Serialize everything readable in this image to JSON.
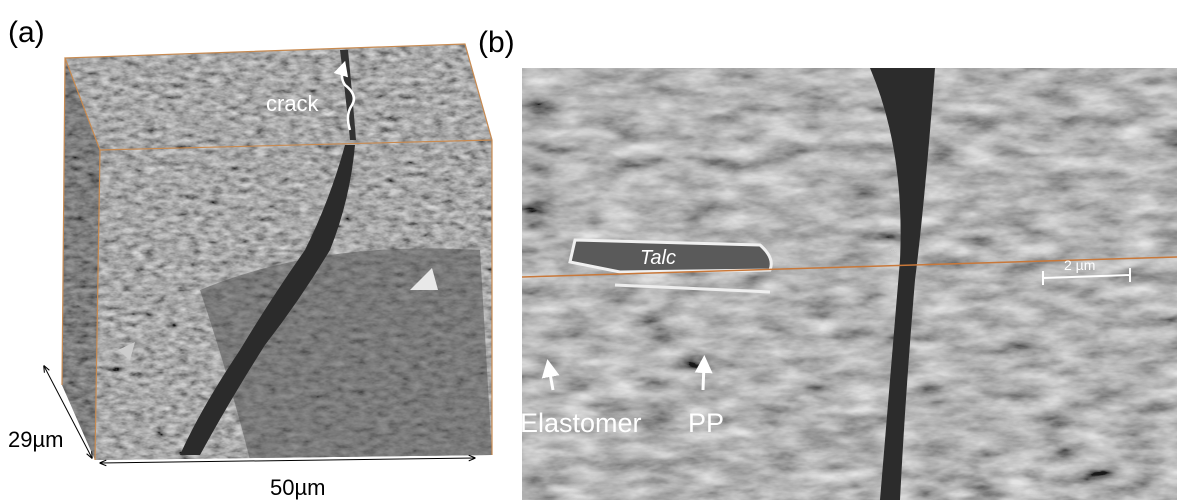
{
  "panel_a": {
    "label": "(a)",
    "crack_label": "crack",
    "depth_label": "29µm",
    "width_label": "50µm"
  },
  "panel_b": {
    "label": "(b)",
    "talc_label": "Talc",
    "scale_bar_label": "2 µm",
    "elastomer_label": "Elastomer",
    "pp_label": "PP"
  }
}
